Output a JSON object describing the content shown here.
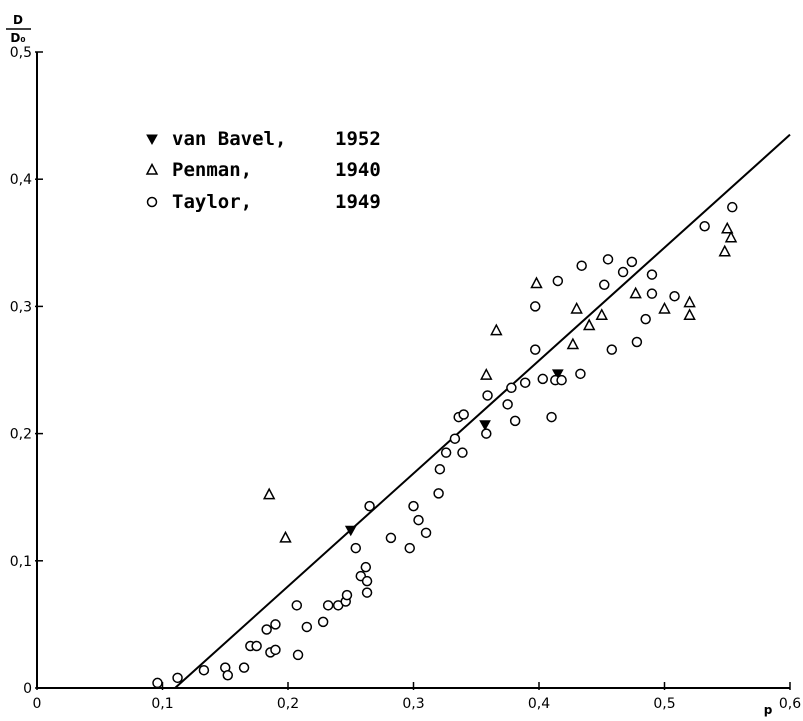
{
  "chart_data": {
    "type": "scatter",
    "title": "",
    "ylabel": {
      "numerator": "D",
      "denominator": "D₀"
    },
    "xlabel": "p",
    "xlim": [
      0,
      0.6
    ],
    "ylim": [
      0,
      0.5
    ],
    "x_ticks": [
      0,
      0.1,
      0.2,
      0.3,
      0.4,
      0.5,
      0.6
    ],
    "x_tick_labels": [
      "0",
      "0,1",
      "0,2",
      "0,3",
      "0,4",
      "0,5",
      "0,6"
    ],
    "y_ticks": [
      0,
      0.1,
      0.2,
      0.3,
      0.4,
      0.5
    ],
    "y_tick_labels": [
      "0",
      "0,1",
      "0,2",
      "0,3",
      "0,4",
      "0,5"
    ],
    "grid": false,
    "legend_position": "top-left",
    "line": {
      "x": [
        0.11,
        0.6
      ],
      "y": [
        0,
        0.435
      ]
    },
    "series": [
      {
        "name": "van Bavel, 1952",
        "marker": "triangle-down-filled",
        "label_parts": [
          "van Bavel,",
          "1952"
        ],
        "points": [
          [
            0.25,
            0.124
          ],
          [
            0.357,
            0.207
          ],
          [
            0.415,
            0.247
          ]
        ]
      },
      {
        "name": "Penman, 1940",
        "marker": "triangle-open",
        "label_parts": [
          "Penman,",
          "1940"
        ],
        "points": [
          [
            0.185,
            0.152
          ],
          [
            0.198,
            0.118
          ],
          [
            0.358,
            0.246
          ],
          [
            0.366,
            0.281
          ],
          [
            0.398,
            0.318
          ],
          [
            0.427,
            0.27
          ],
          [
            0.43,
            0.298
          ],
          [
            0.44,
            0.285
          ],
          [
            0.45,
            0.293
          ],
          [
            0.477,
            0.31
          ],
          [
            0.5,
            0.298
          ],
          [
            0.52,
            0.303
          ],
          [
            0.52,
            0.293
          ],
          [
            0.548,
            0.343
          ],
          [
            0.55,
            0.361
          ],
          [
            0.553,
            0.354
          ]
        ]
      },
      {
        "name": "Taylor, 1949",
        "marker": "circle-open",
        "label_parts": [
          "Taylor,",
          "1949"
        ],
        "points": [
          [
            0.096,
            0.004
          ],
          [
            0.112,
            0.008
          ],
          [
            0.133,
            0.014
          ],
          [
            0.15,
            0.016
          ],
          [
            0.152,
            0.01
          ],
          [
            0.165,
            0.016
          ],
          [
            0.17,
            0.033
          ],
          [
            0.175,
            0.033
          ],
          [
            0.183,
            0.046
          ],
          [
            0.186,
            0.028
          ],
          [
            0.19,
            0.03
          ],
          [
            0.19,
            0.05
          ],
          [
            0.207,
            0.065
          ],
          [
            0.208,
            0.026
          ],
          [
            0.215,
            0.048
          ],
          [
            0.228,
            0.052
          ],
          [
            0.232,
            0.065
          ],
          [
            0.24,
            0.065
          ],
          [
            0.246,
            0.068
          ],
          [
            0.247,
            0.073
          ],
          [
            0.254,
            0.11
          ],
          [
            0.258,
            0.088
          ],
          [
            0.262,
            0.095
          ],
          [
            0.263,
            0.084
          ],
          [
            0.263,
            0.075
          ],
          [
            0.265,
            0.143
          ],
          [
            0.282,
            0.118
          ],
          [
            0.297,
            0.11
          ],
          [
            0.3,
            0.143
          ],
          [
            0.304,
            0.132
          ],
          [
            0.31,
            0.122
          ],
          [
            0.32,
            0.153
          ],
          [
            0.321,
            0.172
          ],
          [
            0.326,
            0.185
          ],
          [
            0.333,
            0.196
          ],
          [
            0.336,
            0.213
          ],
          [
            0.34,
            0.215
          ],
          [
            0.339,
            0.185
          ],
          [
            0.358,
            0.2
          ],
          [
            0.359,
            0.23
          ],
          [
            0.375,
            0.223
          ],
          [
            0.378,
            0.236
          ],
          [
            0.381,
            0.21
          ],
          [
            0.389,
            0.24
          ],
          [
            0.397,
            0.3
          ],
          [
            0.397,
            0.266
          ],
          [
            0.403,
            0.243
          ],
          [
            0.41,
            0.213
          ],
          [
            0.413,
            0.242
          ],
          [
            0.415,
            0.32
          ],
          [
            0.418,
            0.242
          ],
          [
            0.433,
            0.247
          ],
          [
            0.434,
            0.332
          ],
          [
            0.452,
            0.317
          ],
          [
            0.455,
            0.337
          ],
          [
            0.458,
            0.266
          ],
          [
            0.467,
            0.327
          ],
          [
            0.474,
            0.335
          ],
          [
            0.478,
            0.272
          ],
          [
            0.485,
            0.29
          ],
          [
            0.49,
            0.325
          ],
          [
            0.49,
            0.31
          ],
          [
            0.508,
            0.308
          ],
          [
            0.532,
            0.363
          ],
          [
            0.554,
            0.378
          ]
        ]
      }
    ]
  }
}
